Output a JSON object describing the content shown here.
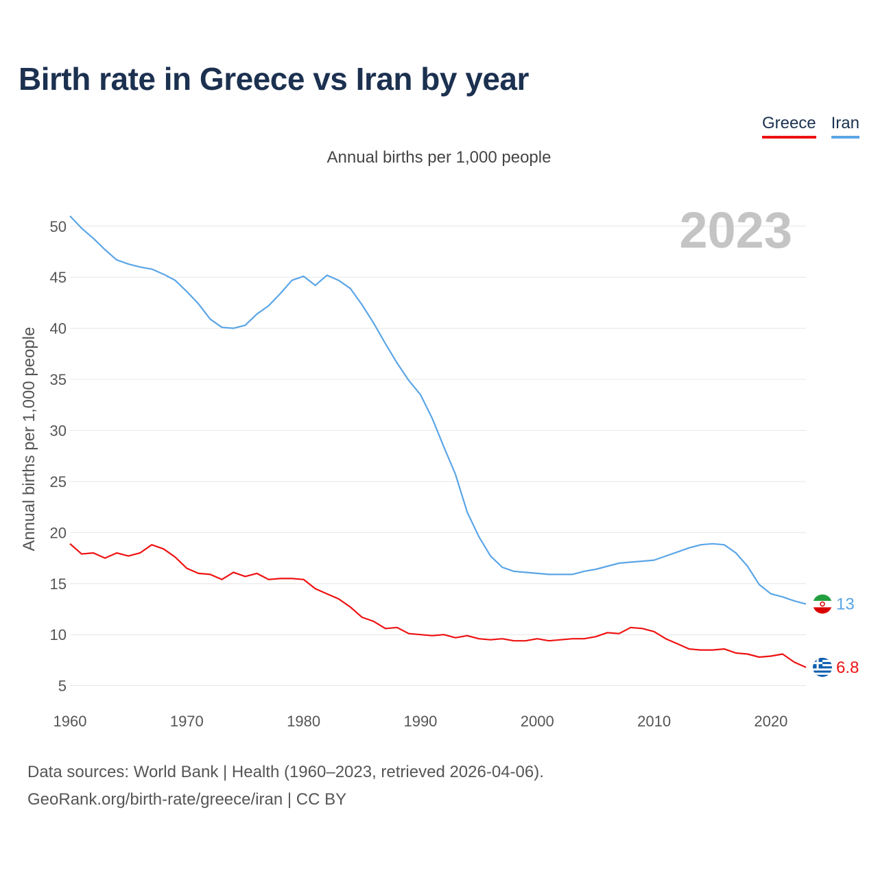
{
  "title": "Birth rate in Greece vs Iran by year",
  "subtitle": "Annual births per 1,000 people",
  "source_line1": "Data sources: World Bank | Health (1960–2023, retrieved 2026-04-06).",
  "source_line2": "GeoRank.org/birth-rate/greece/iran | CC BY",
  "year_watermark": "2023",
  "chart_data": {
    "type": "line",
    "title": "Birth rate in Greece vs Iran by year",
    "xlabel": "",
    "ylabel": "Annual births per 1,000 people",
    "xlim": [
      1960,
      2023
    ],
    "ylim": [
      3.5,
      52
    ],
    "yticks": [
      5,
      10,
      15,
      20,
      25,
      30,
      35,
      40,
      45,
      50
    ],
    "xticks": [
      1960,
      1970,
      1980,
      1990,
      2000,
      2010,
      2020
    ],
    "grid": true,
    "legend": "top-right",
    "x": [
      1960,
      1961,
      1962,
      1963,
      1964,
      1965,
      1966,
      1967,
      1968,
      1969,
      1970,
      1971,
      1972,
      1973,
      1974,
      1975,
      1976,
      1977,
      1978,
      1979,
      1980,
      1981,
      1982,
      1983,
      1984,
      1985,
      1986,
      1987,
      1988,
      1989,
      1990,
      1991,
      1992,
      1993,
      1994,
      1995,
      1996,
      1997,
      1998,
      1999,
      2000,
      2001,
      2002,
      2003,
      2004,
      2005,
      2006,
      2007,
      2008,
      2009,
      2010,
      2011,
      2012,
      2013,
      2014,
      2015,
      2016,
      2017,
      2018,
      2019,
      2020,
      2021,
      2022,
      2023
    ],
    "series": [
      {
        "name": "Greece",
        "color": "#ee1111",
        "end_label": "6.8",
        "values": [
          18.9,
          17.9,
          18.0,
          17.5,
          18.0,
          17.7,
          18.0,
          18.8,
          18.4,
          17.6,
          16.5,
          16.0,
          15.9,
          15.4,
          16.1,
          15.7,
          16.0,
          15.4,
          15.5,
          15.5,
          15.4,
          14.5,
          14.0,
          13.5,
          12.7,
          11.7,
          11.3,
          10.6,
          10.7,
          10.1,
          10.0,
          9.9,
          10.0,
          9.7,
          9.9,
          9.6,
          9.5,
          9.6,
          9.4,
          9.4,
          9.6,
          9.4,
          9.5,
          9.6,
          9.6,
          9.8,
          10.2,
          10.1,
          10.7,
          10.6,
          10.3,
          9.6,
          9.1,
          8.6,
          8.5,
          8.5,
          8.6,
          8.2,
          8.1,
          7.8,
          7.9,
          8.1,
          7.3,
          6.8
        ]
      },
      {
        "name": "Iran",
        "color": "#5aa5e6",
        "end_label": "13",
        "values": [
          51.0,
          49.8,
          48.8,
          47.7,
          46.7,
          46.3,
          46.0,
          45.8,
          45.3,
          44.7,
          43.6,
          42.4,
          40.9,
          40.1,
          40.0,
          40.3,
          41.4,
          42.2,
          43.4,
          44.7,
          45.1,
          44.2,
          45.2,
          44.7,
          43.9,
          42.3,
          40.5,
          38.5,
          36.6,
          34.9,
          33.5,
          31.2,
          28.4,
          25.7,
          22.0,
          19.6,
          17.7,
          16.6,
          16.2,
          16.1,
          16.0,
          15.9,
          15.9,
          15.9,
          16.2,
          16.4,
          16.7,
          17.0,
          17.1,
          17.2,
          17.3,
          17.7,
          18.1,
          18.5,
          18.8,
          18.9,
          18.8,
          18.0,
          16.7,
          14.9,
          14.0,
          13.7,
          13.3,
          13.0
        ]
      }
    ]
  }
}
